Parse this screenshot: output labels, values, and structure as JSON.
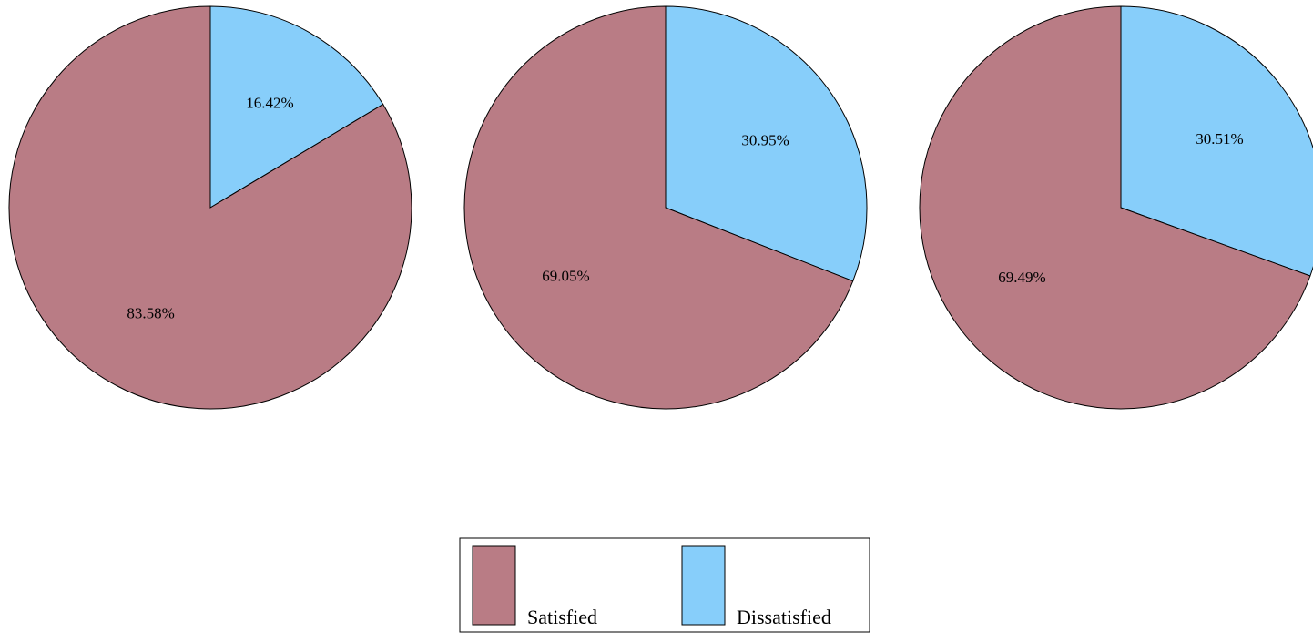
{
  "colors": {
    "satisfied": "#b97c85",
    "dissatisfied": "#87cefa",
    "outline": "#000000"
  },
  "chart_data": [
    {
      "type": "pie",
      "series": [
        {
          "name": "Satisfied",
          "value": 83.58,
          "label": "83.58%"
        },
        {
          "name": "Dissatisfied",
          "value": 16.42,
          "label": "16.42%"
        }
      ]
    },
    {
      "type": "pie",
      "series": [
        {
          "name": "Satisfied",
          "value": 69.05,
          "label": "69.05%"
        },
        {
          "name": "Dissatisfied",
          "value": 30.95,
          "label": "30.95%"
        }
      ]
    },
    {
      "type": "pie",
      "series": [
        {
          "name": "Satisfied",
          "value": 69.49,
          "label": "69.49%"
        },
        {
          "name": "Dissatisfied",
          "value": 30.51,
          "label": "30.51%"
        }
      ]
    }
  ],
  "legend": {
    "placement": "bottom-center",
    "items": [
      {
        "label": "Satisfied",
        "color_key": "satisfied"
      },
      {
        "label": "Dissatisfied",
        "color_key": "dissatisfied"
      }
    ]
  }
}
